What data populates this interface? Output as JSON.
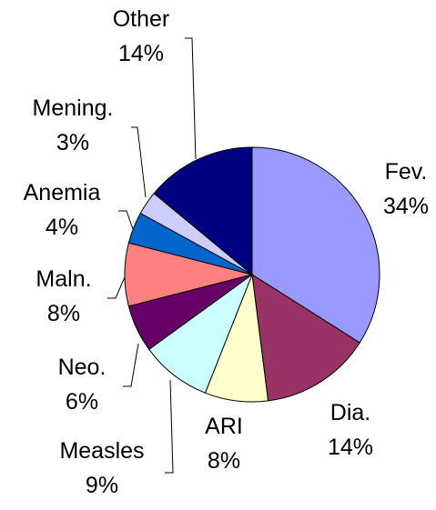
{
  "chart_data": {
    "type": "pie",
    "categories": [
      "Fev.",
      "Dia.",
      "ARI",
      "Measles",
      "Neo.",
      "Maln.",
      "Anemia",
      "Mening.",
      "Other"
    ],
    "values": [
      34,
      14,
      8,
      9,
      6,
      8,
      4,
      3,
      14
    ],
    "value_labels": [
      "34%",
      "14%",
      "8%",
      "9%",
      "6%",
      "8%",
      "4%",
      "3%",
      "14%"
    ],
    "colors": [
      "#9999ff",
      "#993366",
      "#ffffcc",
      "#ccffff",
      "#660066",
      "#ff8080",
      "#0066cc",
      "#ccccff",
      "#000080"
    ]
  }
}
